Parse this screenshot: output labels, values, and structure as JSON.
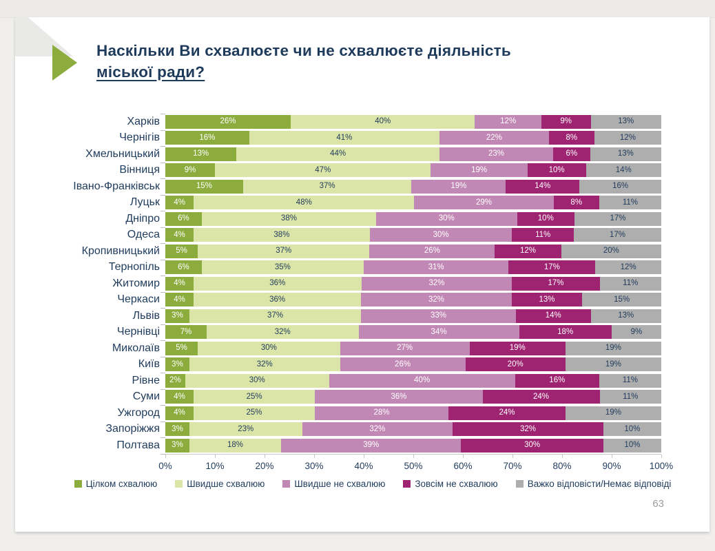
{
  "title": {
    "line1": "Наскільки Ви схвалюєте чи не схвалюєте діяльність",
    "line2": "міської ради?"
  },
  "decor": {
    "marker_icon": "green-triangle-right",
    "marker_color": "#8cac3e"
  },
  "page": {
    "number": "63"
  },
  "colors": {
    "title_text": "#1f3b5c",
    "background": "#f0efed",
    "slide": "#ffffff",
    "axis_line": "#c7c7c5"
  },
  "chart_data": {
    "type": "bar",
    "stacked": true,
    "orientation": "horizontal",
    "value_suffix": "%",
    "xlim": [
      0,
      100
    ],
    "x_ticks": [
      "0%",
      "10%",
      "20%",
      "30%",
      "40%",
      "50%",
      "60%",
      "70%",
      "80%",
      "90%",
      "100%"
    ],
    "legend_position": "bottom",
    "grid": false,
    "categories": [
      "Харків",
      "Чернігів",
      "Хмельницький",
      "Вінниця",
      "Івано-Франківськ",
      "Луцьк",
      "Дніпро",
      "Одеса",
      "Кропивницький",
      "Тернопіль",
      "Житомир",
      "Черкаси",
      "Львів",
      "Чернівці",
      "Миколаїв",
      "Київ",
      "Рівне",
      "Суми",
      "Ужгород",
      "Запоріжжя",
      "Полтава"
    ],
    "series": [
      {
        "name": "Цілком схвалюю",
        "color": "#8cac3e",
        "label_color": "#ffffff",
        "values": [
          26,
          16,
          13,
          9,
          15,
          4,
          6,
          4,
          5,
          6,
          4,
          4,
          3,
          7,
          5,
          3,
          2,
          4,
          4,
          3,
          3
        ]
      },
      {
        "name": "Швидше схвалюю",
        "color": "#dce5a8",
        "label_color": "#1f3b5c",
        "values": [
          40,
          41,
          44,
          47,
          37,
          48,
          38,
          38,
          37,
          35,
          36,
          36,
          37,
          32,
          30,
          32,
          30,
          25,
          25,
          23,
          18
        ]
      },
      {
        "name": "Швидше не схвалюю",
        "color": "#c288b5",
        "label_color": "#ffffff",
        "values": [
          12,
          22,
          23,
          19,
          19,
          29,
          30,
          30,
          26,
          31,
          32,
          32,
          33,
          34,
          27,
          26,
          40,
          36,
          28,
          32,
          39
        ]
      },
      {
        "name": "Зовсім не схвалюю",
        "color": "#9e2371",
        "label_color": "#ffffff",
        "values": [
          9,
          8,
          6,
          10,
          14,
          8,
          10,
          11,
          12,
          17,
          17,
          13,
          14,
          18,
          19,
          20,
          16,
          24,
          24,
          32,
          30
        ]
      },
      {
        "name": "Важко відповісти/Немає відповіді",
        "color": "#aeaeae",
        "label_color": "#1f3b5c",
        "values": [
          13,
          12,
          13,
          14,
          16,
          11,
          17,
          17,
          20,
          12,
          11,
          15,
          13,
          9,
          19,
          19,
          11,
          11,
          19,
          10,
          10
        ]
      }
    ]
  }
}
